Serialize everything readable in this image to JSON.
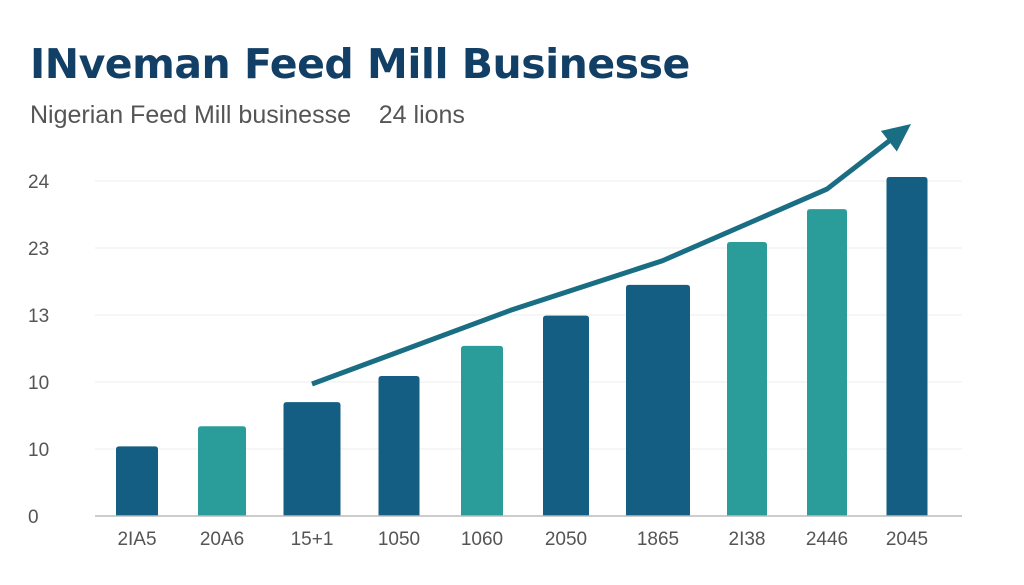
{
  "chart_data": {
    "type": "bar",
    "title": "INveman Feed Mill Businesse",
    "subtitle": "Nigerian Feed Mill businesse    24 lions",
    "categories": [
      "2IA5",
      "20A6",
      "15+1",
      "1050",
      "1060",
      "2050",
      "1865",
      "2I38",
      "2446",
      "2045"
    ],
    "y_tick_labels": [
      "0",
      "10",
      "10",
      "13",
      "23",
      "24"
    ],
    "y_scale_note_free": true,
    "values": [
      1.04,
      1.34,
      1.7,
      2.09,
      2.54,
      2.99,
      3.45,
      4.09,
      4.58,
      5.06
    ],
    "bar_colors": [
      "#135e82",
      "#2a9d9a",
      "#135e82",
      "#135e82",
      "#2a9d9a",
      "#135e82",
      "#135e82",
      "#2a9d9a",
      "#2a9d9a",
      "#135e82"
    ],
    "trend_line": {
      "color": "#1a6e84",
      "points": [
        [
          2,
          1.97
        ],
        [
          4.34,
          3.07
        ],
        [
          6.05,
          3.81
        ],
        [
          8,
          4.88
        ],
        [
          9.05,
          5.85
        ]
      ]
    },
    "grid": true,
    "legend": "none",
    "xlabel": "",
    "ylabel": ""
  }
}
